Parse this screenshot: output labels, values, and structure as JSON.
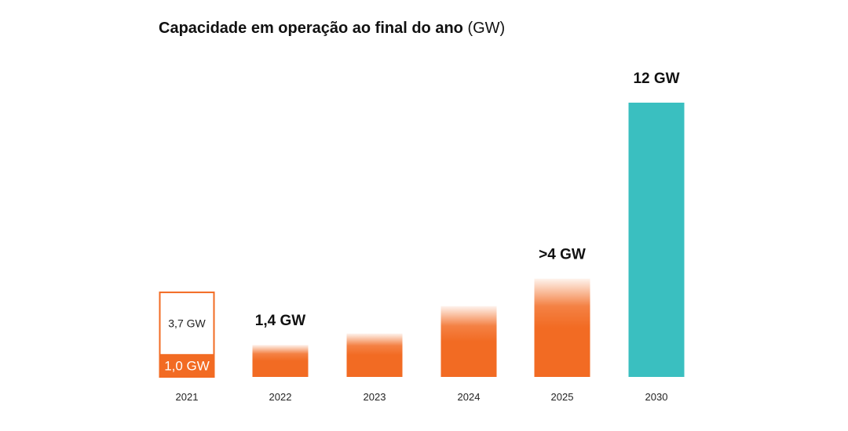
{
  "chart_data": {
    "type": "bar",
    "title": "Capacidade em operação ao final do ano",
    "unit": "(GW)",
    "categories": [
      "2021",
      "2022",
      "2023",
      "2024",
      "2025",
      "2030"
    ],
    "values": [
      1.0,
      1.4,
      1.9,
      3.1,
      4.3,
      12
    ],
    "labels": [
      "1,0 GW",
      "1,4 GW",
      "",
      "",
      ">4 GW",
      "12 GW"
    ],
    "bar_2021_outline": {
      "value": 3.7,
      "label": "3,7 GW"
    },
    "ylim": [
      0,
      12
    ],
    "grid": false,
    "legend": "none",
    "colors": {
      "orange": "#F26B23",
      "teal": "#3ABFC0",
      "outline": "#F26B23"
    },
    "fade_top": [
      false,
      true,
      true,
      true,
      true,
      false
    ]
  }
}
